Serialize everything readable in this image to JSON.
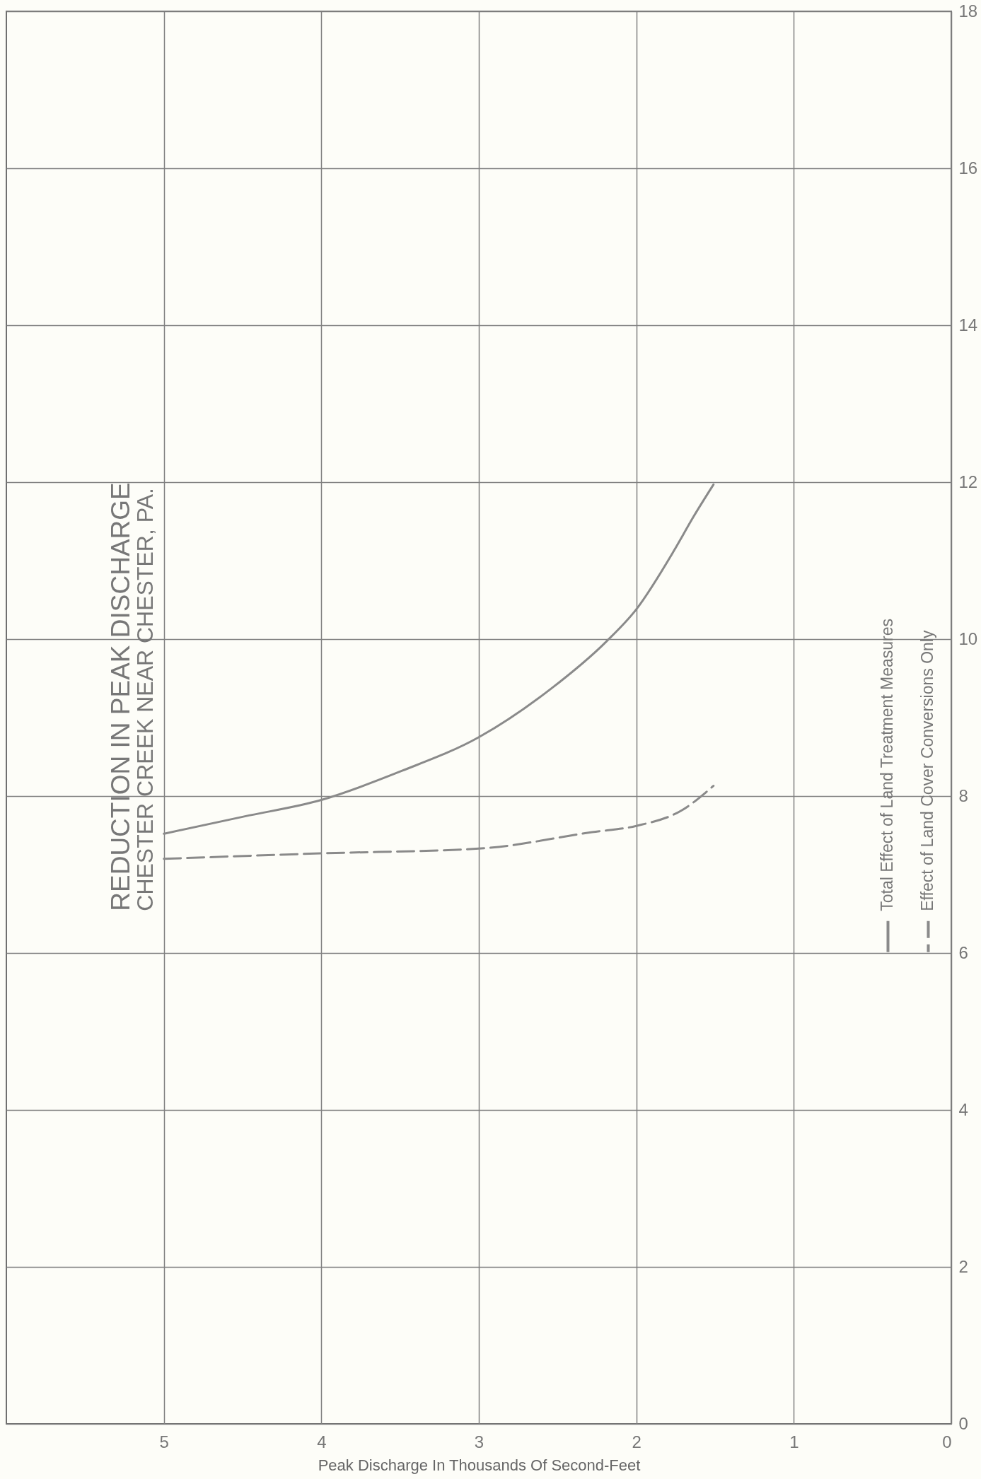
{
  "chart_data": {
    "type": "line",
    "title": "REDUCTION IN PEAK DISCHARGE",
    "subtitle": "CHESTER CREEK NEAR CHESTER, PA.",
    "xlabel": "Peak Discharge In Thousands Of Second-Feet",
    "xlim": [
      6,
      0
    ],
    "xticks": [
      5,
      4,
      3,
      2,
      1,
      0
    ],
    "ylim": [
      0,
      18
    ],
    "yticks": [
      0,
      2,
      4,
      6,
      8,
      10,
      12,
      14,
      16,
      18
    ],
    "grid": true,
    "legend": "right",
    "series": [
      {
        "name": "Total Effect of Land Treatment Measures",
        "color": "#8a8a8a",
        "line_style": "solid",
        "x": [
          5,
          4.49,
          4,
          3.49,
          3,
          2.54,
          2.19,
          2,
          1.76,
          1.64,
          1.51
        ],
        "values": [
          7.52,
          7.74,
          7.95,
          8.32,
          8.75,
          9.37,
          9.97,
          10.38,
          11.13,
          11.55,
          11.97
        ]
      },
      {
        "name": "Effect of Land Cover Conversions Only",
        "color": "#8a8a8a",
        "line_style": "dashed",
        "x": [
          5,
          4,
          3,
          2.28,
          2,
          1.71,
          1.51
        ],
        "values": [
          7.2,
          7.27,
          7.33,
          7.54,
          7.62,
          7.82,
          8.13
        ]
      }
    ]
  }
}
